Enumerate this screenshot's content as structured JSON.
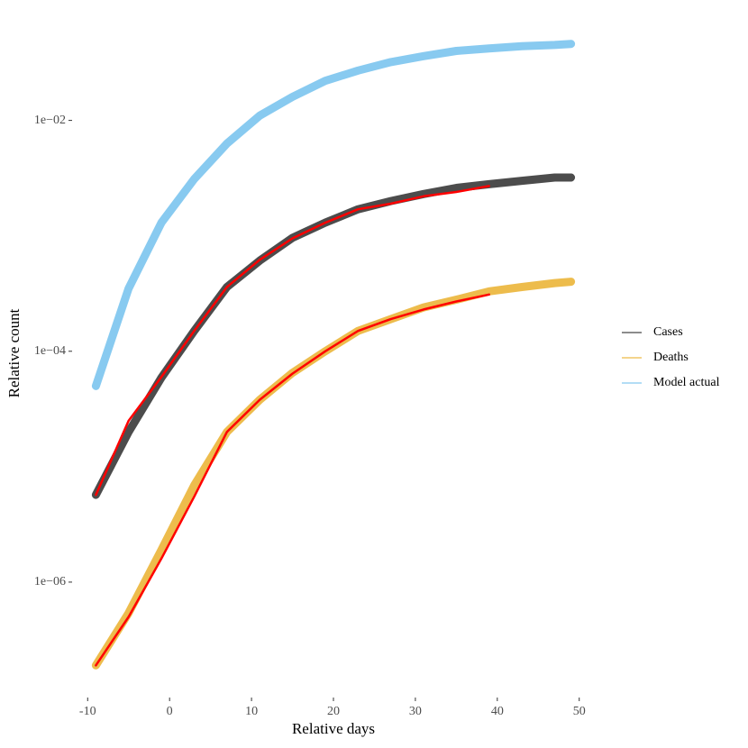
{
  "chart_data": {
    "type": "line",
    "xlabel": "Relative days",
    "ylabel": "Relative count",
    "x": [
      -9,
      -5,
      -1,
      3,
      7,
      11,
      15,
      19,
      23,
      27,
      31,
      35,
      39,
      43,
      47,
      49
    ],
    "series": [
      {
        "name": "Cases",
        "color": "#000000",
        "values": [
          5.7e-06,
          2e-05,
          5.9e-05,
          0.00015,
          0.00036,
          0.00061,
          0.00096,
          0.0013,
          0.0017,
          0.002,
          0.0023,
          0.0026,
          0.0028,
          0.003,
          0.0032,
          0.0032
        ]
      },
      {
        "name": "Deaths",
        "color": "#E69F00",
        "values": [
          1.9e-07,
          5.4e-07,
          1.9e-06,
          6.9e-06,
          2e-05,
          3.8e-05,
          6.5e-05,
          0.0001,
          0.00015,
          0.00019,
          0.00024,
          0.00028,
          0.00033,
          0.00036,
          0.00039,
          0.0004
        ]
      },
      {
        "name": "Model actual",
        "color": "#56B4E9",
        "values": [
          5e-05,
          0.00035,
          0.0013,
          0.0031,
          0.0063,
          0.011,
          0.016,
          0.022,
          0.027,
          0.032,
          0.036,
          0.04,
          0.042,
          0.044,
          0.045,
          0.046
        ]
      },
      {
        "color": "#FF0000",
        "values": [
          5.7e-06,
          2.5e-05,
          6e-05,
          0.00015,
          0.00036,
          0.00062,
          0.00095,
          0.0013,
          0.0017,
          0.0019,
          0.0022,
          0.0024,
          0.0027,
          null,
          null,
          null
        ]
      },
      {
        "color": "#FF0000",
        "values": [
          1.9e-07,
          5e-07,
          1.6e-06,
          5.5e-06,
          2e-05,
          3.8e-05,
          6.4e-05,
          0.0001,
          0.00015,
          0.00019,
          0.00023,
          0.00027,
          0.00031,
          null,
          null,
          null
        ]
      }
    ],
    "xlim": [
      -11.9,
      51.9
    ],
    "xticks": [
      -10,
      0,
      10,
      20,
      30,
      40,
      50
    ],
    "ylim": [
      1e-07,
      0.089
    ],
    "ylog": true,
    "yticks": [
      {
        "value": 1e-06,
        "label": "1e−06"
      },
      {
        "value": 0.0001,
        "label": "1e−04"
      },
      {
        "value": 0.01,
        "label": "1e−02"
      }
    ],
    "grid": false,
    "legend": "right"
  }
}
